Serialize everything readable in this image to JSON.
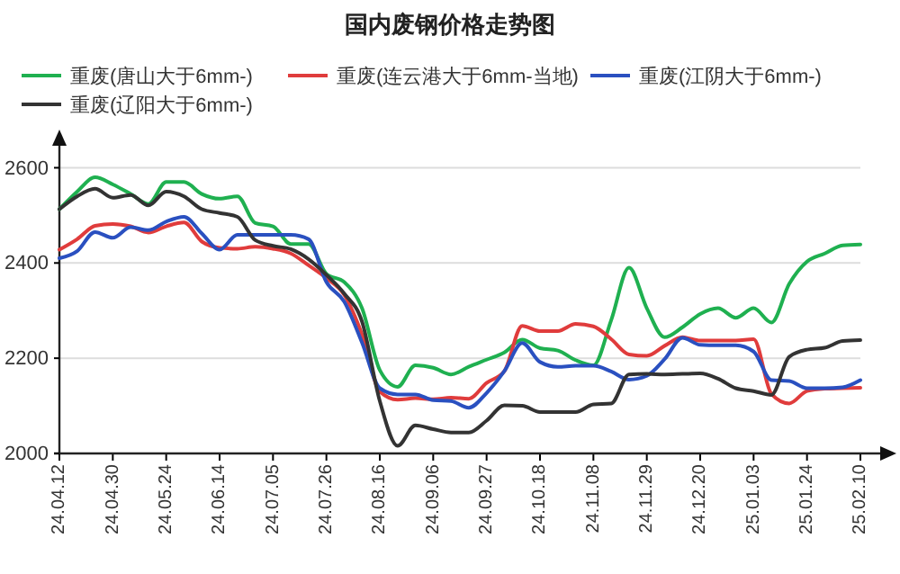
{
  "chart_data": {
    "type": "line",
    "title": "国内废钢价格走势图",
    "categories": [
      "24.04.12",
      null,
      null,
      "24.04.30",
      null,
      null,
      "24.05.24",
      null,
      null,
      "24.06.14",
      null,
      null,
      "24.07.05",
      null,
      null,
      "24.07.26",
      null,
      null,
      "24.08.16",
      null,
      null,
      "24.09.06",
      null,
      null,
      "24.09.27",
      null,
      null,
      "24.10.18",
      null,
      null,
      "24.11.08",
      null,
      null,
      "24.11.29",
      null,
      null,
      "24.12.20",
      null,
      null,
      "25.01.03",
      null,
      null,
      "25.01.24",
      null,
      null,
      "25.02.10"
    ],
    "ylim": [
      2000,
      2650
    ],
    "yticks": [
      2000,
      2200,
      2400,
      2600
    ],
    "grid": "y",
    "legend": "top",
    "marker": "none",
    "line_style": "solid",
    "series": [
      {
        "name": "重废(唐山大于6mm-)",
        "color": "#1fb050",
        "values": [
          2513,
          2550,
          2580,
          2565,
          2545,
          2524,
          2570,
          2570,
          2545,
          2535,
          2540,
          2484,
          2477,
          2440,
          2440,
          2377,
          2360,
          2305,
          2175,
          2140,
          2185,
          2180,
          2166,
          2182,
          2197,
          2212,
          2239,
          2221,
          2216,
          2196,
          2185,
          2280,
          2390,
          2305,
          2244,
          2265,
          2293,
          2305,
          2285,
          2305,
          2275,
          2356,
          2403,
          2420,
          2437,
          2439
        ]
      },
      {
        "name": "重废(连云港大于6mm-当地)",
        "color": "#e03c3c",
        "values": [
          2428,
          2450,
          2478,
          2482,
          2477,
          2464,
          2477,
          2485,
          2445,
          2432,
          2430,
          2434,
          2430,
          2420,
          2395,
          2368,
          2333,
          2250,
          2130,
          2113,
          2116,
          2114,
          2117,
          2115,
          2148,
          2173,
          2268,
          2257,
          2257,
          2272,
          2267,
          2240,
          2208,
          2205,
          2226,
          2244,
          2237,
          2237,
          2237,
          2240,
          2125,
          2105,
          2131,
          2136,
          2137,
          2138
        ]
      },
      {
        "name": "重废(江阴大于6mm-)",
        "color": "#2a50c0",
        "values": [
          2410,
          2425,
          2465,
          2453,
          2475,
          2469,
          2487,
          2497,
          2462,
          2428,
          2459,
          2459,
          2459,
          2459,
          2450,
          2360,
          2319,
          2233,
          2137,
          2124,
          2124,
          2112,
          2110,
          2096,
          2127,
          2173,
          2232,
          2192,
          2182,
          2184,
          2184,
          2172,
          2155,
          2163,
          2198,
          2243,
          2228,
          2227,
          2227,
          2214,
          2154,
          2152,
          2137,
          2137,
          2139,
          2154
        ]
      },
      {
        "name": "重废(辽阳大于6mm-)",
        "color": "#333333",
        "values": [
          2513,
          2540,
          2556,
          2537,
          2543,
          2521,
          2550,
          2540,
          2513,
          2505,
          2497,
          2448,
          2436,
          2429,
          2408,
          2375,
          2336,
          2277,
          2110,
          2016,
          2059,
          2051,
          2044,
          2044,
          2069,
          2101,
          2100,
          2087,
          2087,
          2087,
          2103,
          2105,
          2166,
          2167,
          2166,
          2167,
          2168,
          2157,
          2137,
          2131,
          2123,
          2203,
          2218,
          2222,
          2236,
          2238
        ]
      }
    ]
  }
}
